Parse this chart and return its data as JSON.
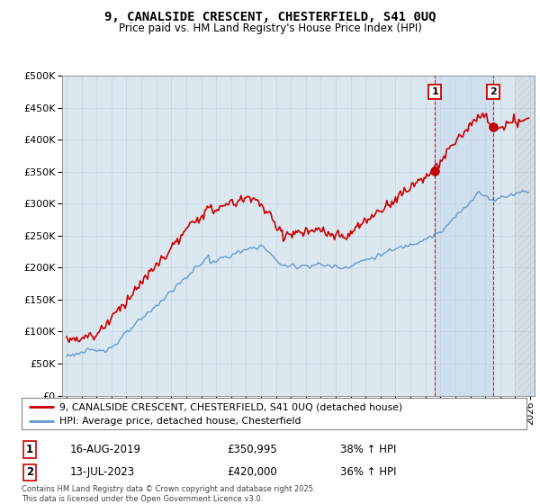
{
  "title": "9, CANALSIDE CRESCENT, CHESTERFIELD, S41 0UQ",
  "subtitle": "Price paid vs. HM Land Registry's House Price Index (HPI)",
  "legend_entry1": "9, CANALSIDE CRESCENT, CHESTERFIELD, S41 0UQ (detached house)",
  "legend_entry2": "HPI: Average price, detached house, Chesterfield",
  "annotation1_label": "1",
  "annotation1_date": "16-AUG-2019",
  "annotation1_price": "£350,995",
  "annotation1_hpi": "38% ↑ HPI",
  "annotation2_label": "2",
  "annotation2_date": "13-JUL-2023",
  "annotation2_price": "£420,000",
  "annotation2_hpi": "36% ↑ HPI",
  "footer": "Contains HM Land Registry data © Crown copyright and database right 2025.\nThis data is licensed under the Open Government Licence v3.0.",
  "red_color": "#cc0000",
  "blue_color": "#6699cc",
  "vline_color": "#cc0000",
  "background_color": "#ffffff",
  "grid_color": "#c8d8e8",
  "chart_bg": "#dce8f0",
  "shade_color": "#ccdcec",
  "ylim": [
    0,
    500000
  ],
  "yticks": [
    0,
    50000,
    100000,
    150000,
    200000,
    250000,
    300000,
    350000,
    400000,
    450000,
    500000
  ],
  "sale1_x": 2019.625,
  "sale1_y": 350995,
  "sale2_x": 2023.54,
  "sale2_y": 420000,
  "xmin": 1995.0,
  "xmax": 2026.0
}
